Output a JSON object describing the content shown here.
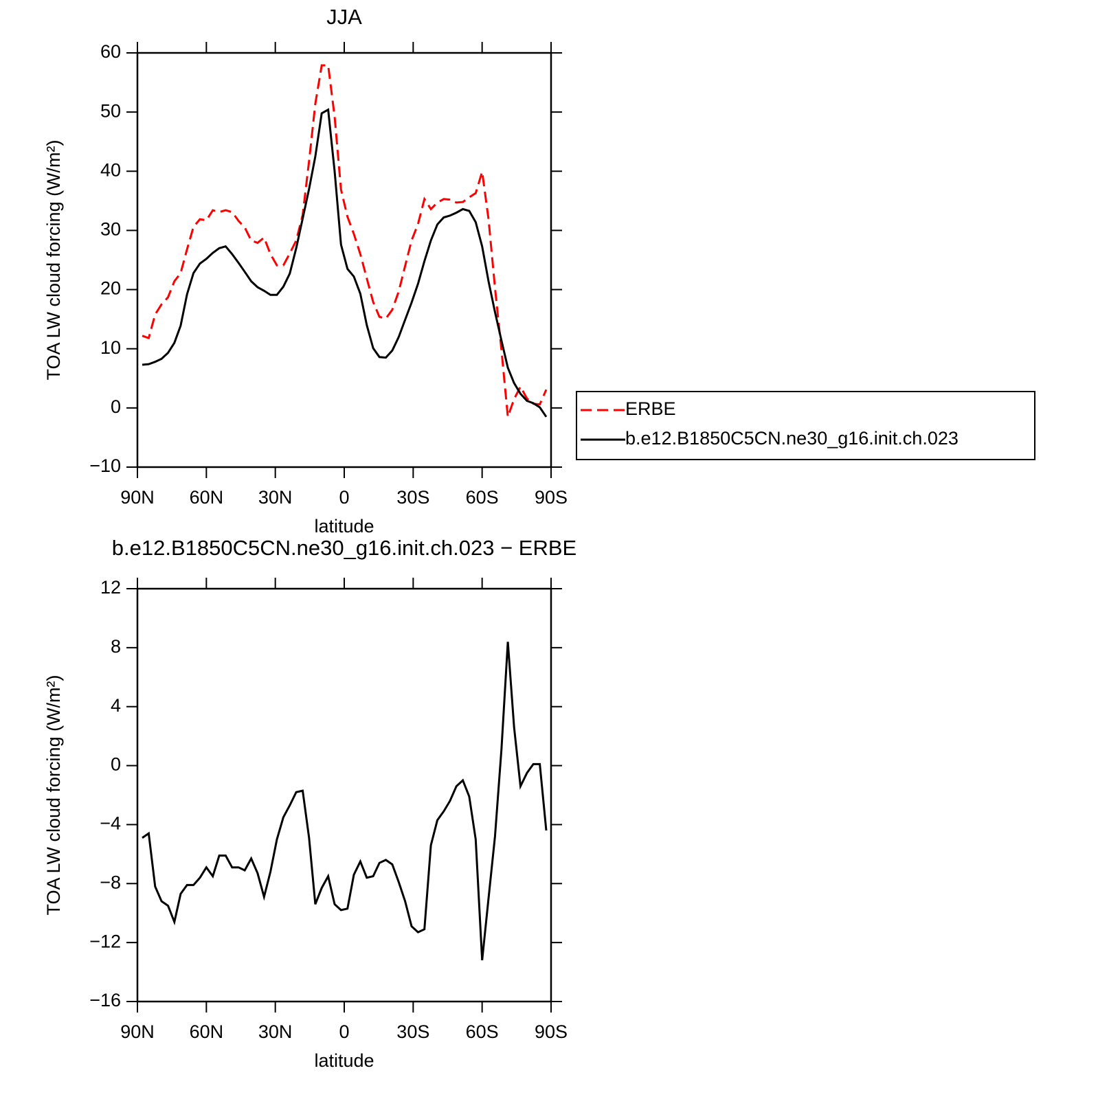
{
  "chart_data": [
    {
      "type": "line",
      "title": "JJA",
      "xlabel": "latitude",
      "ylabel": "TOA LW cloud forcing (W/m²)",
      "x": [
        87.9,
        85.1,
        82.3,
        79.5,
        76.7,
        73.9,
        71.2,
        68.4,
        65.6,
        62.8,
        60.0,
        57.2,
        54.4,
        51.6,
        48.8,
        46.0,
        43.3,
        40.5,
        37.7,
        34.9,
        32.1,
        29.3,
        26.5,
        23.7,
        20.9,
        18.1,
        15.3,
        12.6,
        9.8,
        7.0,
        4.2,
        1.4,
        -1.4,
        -4.2,
        -7.0,
        -9.8,
        -12.6,
        -15.3,
        -18.1,
        -20.9,
        -23.7,
        -26.5,
        -29.3,
        -32.1,
        -34.9,
        -37.7,
        -40.5,
        -43.3,
        -46.0,
        -48.8,
        -51.6,
        -54.4,
        -57.2,
        -60.0,
        -62.8,
        -65.6,
        -68.4,
        -71.2,
        -73.9,
        -76.7,
        -79.5,
        -82.3,
        -85.1,
        -87.9
      ],
      "xlim": [
        90,
        -90
      ],
      "xticks": [
        {
          "value": 90,
          "label": "90N"
        },
        {
          "value": 60,
          "label": "60N"
        },
        {
          "value": 30,
          "label": "30N"
        },
        0,
        {
          "value": -30,
          "label": "30S"
        },
        {
          "value": -60,
          "label": "60S"
        },
        {
          "value": -90,
          "label": "90S"
        }
      ],
      "ylim": [
        -10,
        60
      ],
      "yticks": [
        {
          "value": -10,
          "label": "−10"
        },
        0,
        10,
        20,
        30,
        40,
        50,
        60
      ],
      "legend": "right",
      "series": [
        {
          "name": "ERBE",
          "color": "#ff0000",
          "dash": "dashed",
          "values": [
            12.2,
            11.8,
            15.8,
            17.5,
            18.7,
            21.4,
            22.8,
            26.8,
            30.6,
            31.9,
            31.7,
            33.4,
            33.1,
            33.4,
            33.1,
            31.6,
            30.5,
            28.3,
            27.9,
            28.8,
            26.0,
            24.1,
            24.1,
            26.1,
            28.3,
            32.6,
            41.7,
            51.4,
            57.9,
            57.9,
            49.2,
            36.9,
            32.3,
            29.4,
            26.0,
            21.9,
            17.9,
            15.4,
            15.1,
            16.6,
            19.7,
            24.0,
            28.3,
            31.1,
            35.3,
            33.6,
            34.7,
            35.3,
            35.2,
            34.7,
            34.8,
            35.6,
            36.3,
            39.9,
            31.9,
            20.3,
            9.8,
            -1.5,
            1.5,
            3.6,
            1.6,
            0.7,
            0.6,
            3.1
          ]
        },
        {
          "name": "b.e12.B1850C5CN.ne30_g16.init.ch.023",
          "color": "#000000",
          "dash": "solid",
          "values": [
            7.3,
            7.4,
            7.8,
            8.3,
            9.3,
            11.0,
            13.9,
            19.2,
            22.8,
            24.4,
            25.2,
            26.2,
            27.0,
            27.3,
            26.0,
            24.5,
            23.0,
            21.4,
            20.4,
            19.8,
            19.1,
            19.1,
            20.5,
            22.7,
            27.0,
            32.0,
            37.0,
            42.5,
            49.8,
            50.4,
            40.0,
            27.6,
            23.5,
            22.2,
            19.3,
            14.0,
            10.1,
            8.6,
            8.5,
            9.7,
            12.0,
            14.9,
            17.8,
            21.0,
            24.8,
            28.3,
            31.0,
            32.2,
            32.5,
            33.0,
            33.6,
            33.3,
            31.4,
            27.3,
            21.4,
            16.2,
            11.4,
            6.8,
            4.2,
            2.4,
            1.2,
            0.8,
            0.1,
            -1.5
          ]
        }
      ]
    },
    {
      "type": "line",
      "title": "b.e12.B1850C5CN.ne30_g16.init.ch.023 − ERBE",
      "xlabel": "latitude",
      "ylabel": "TOA LW cloud forcing (W/m²)",
      "x": [
        87.9,
        85.1,
        82.3,
        79.5,
        76.7,
        73.9,
        71.2,
        68.4,
        65.6,
        62.8,
        60.0,
        57.2,
        54.4,
        51.6,
        48.8,
        46.0,
        43.3,
        40.5,
        37.7,
        34.9,
        32.1,
        29.3,
        26.5,
        23.7,
        20.9,
        18.1,
        15.3,
        12.6,
        9.8,
        7.0,
        4.2,
        1.4,
        -1.4,
        -4.2,
        -7.0,
        -9.8,
        -12.6,
        -15.3,
        -18.1,
        -20.9,
        -23.7,
        -26.5,
        -29.3,
        -32.1,
        -34.9,
        -37.7,
        -40.5,
        -43.3,
        -46.0,
        -48.8,
        -51.6,
        -54.4,
        -57.2,
        -60.0,
        -62.8,
        -65.6,
        -68.4,
        -71.2,
        -73.9,
        -76.7,
        -79.5,
        -82.3,
        -85.1,
        -87.9
      ],
      "xlim": [
        90,
        -90
      ],
      "xticks": [
        {
          "value": 90,
          "label": "90N"
        },
        {
          "value": 60,
          "label": "60N"
        },
        {
          "value": 30,
          "label": "30N"
        },
        0,
        {
          "value": -30,
          "label": "30S"
        },
        {
          "value": -60,
          "label": "60S"
        },
        {
          "value": -90,
          "label": "90S"
        }
      ],
      "ylim": [
        -16,
        12
      ],
      "yticks": [
        {
          "value": -16,
          "label": "−16"
        },
        {
          "value": -12,
          "label": "−12"
        },
        {
          "value": -8,
          "label": "−8"
        },
        {
          "value": -4,
          "label": "−4"
        },
        0,
        4,
        8,
        12
      ],
      "series": [
        {
          "color": "#000000",
          "dash": "solid",
          "values": [
            -4.9,
            -4.6,
            -8.2,
            -9.2,
            -9.5,
            -10.6,
            -8.7,
            -8.1,
            -8.1,
            -7.6,
            -6.9,
            -7.5,
            -6.1,
            -6.1,
            -6.9,
            -6.9,
            -7.1,
            -6.3,
            -7.3,
            -8.9,
            -7.2,
            -5.0,
            -3.5,
            -2.7,
            -1.8,
            -1.7,
            -4.9,
            -9.4,
            -8.3,
            -7.5,
            -9.4,
            -9.8,
            -9.7,
            -7.4,
            -6.5,
            -7.6,
            -7.5,
            -6.6,
            -6.4,
            -6.7,
            -7.9,
            -9.2,
            -10.9,
            -11.3,
            -11.1,
            -5.4,
            -3.7,
            -3.1,
            -2.4,
            -1.4,
            -1.0,
            -2.1,
            -5.0,
            -13.2,
            -9.0,
            -4.8,
            1.1,
            8.4,
            2.6,
            -1.4,
            -0.5,
            0.1,
            0.1,
            -4.4
          ]
        }
      ]
    }
  ]
}
